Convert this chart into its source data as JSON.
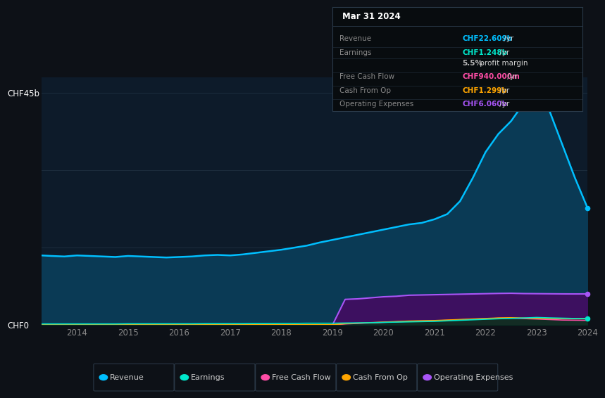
{
  "background_color": "#0d1117",
  "plot_bg_color": "#0d1b2a",
  "title_date": "Mar 31 2024",
  "years": [
    2013.3,
    2013.5,
    2013.75,
    2014.0,
    2014.25,
    2014.5,
    2014.75,
    2015.0,
    2015.25,
    2015.5,
    2015.75,
    2016.0,
    2016.25,
    2016.5,
    2016.75,
    2017.0,
    2017.25,
    2017.5,
    2017.75,
    2018.0,
    2018.25,
    2018.5,
    2018.75,
    2019.0,
    2019.25,
    2019.5,
    2019.75,
    2020.0,
    2020.25,
    2020.5,
    2020.75,
    2021.0,
    2021.25,
    2021.5,
    2021.75,
    2022.0,
    2022.25,
    2022.5,
    2022.75,
    2023.0,
    2023.25,
    2023.5,
    2023.75,
    2024.0
  ],
  "revenue": [
    13.5,
    13.4,
    13.3,
    13.5,
    13.4,
    13.3,
    13.2,
    13.4,
    13.3,
    13.2,
    13.1,
    13.2,
    13.3,
    13.5,
    13.6,
    13.5,
    13.7,
    14.0,
    14.3,
    14.6,
    15.0,
    15.4,
    16.0,
    16.5,
    17.0,
    17.5,
    18.0,
    18.5,
    19.0,
    19.5,
    19.8,
    20.5,
    21.5,
    24.0,
    28.5,
    33.5,
    37.0,
    39.5,
    43.0,
    44.5,
    41.5,
    35.0,
    28.5,
    22.6
  ],
  "earnings": [
    0.25,
    0.25,
    0.25,
    0.25,
    0.25,
    0.25,
    0.25,
    0.28,
    0.28,
    0.28,
    0.28,
    0.28,
    0.28,
    0.3,
    0.3,
    0.3,
    0.3,
    0.32,
    0.32,
    0.35,
    0.35,
    0.38,
    0.38,
    0.38,
    0.42,
    0.45,
    0.48,
    0.55,
    0.6,
    0.65,
    0.7,
    0.75,
    0.85,
    0.95,
    1.05,
    1.15,
    1.25,
    1.32,
    1.4,
    1.5,
    1.42,
    1.36,
    1.3,
    1.248
  ],
  "free_cash_flow": [
    0.05,
    0.05,
    0.05,
    0.05,
    0.05,
    0.05,
    0.05,
    0.05,
    0.05,
    0.05,
    0.05,
    0.05,
    0.05,
    0.05,
    0.05,
    0.05,
    0.05,
    0.05,
    0.05,
    0.05,
    0.05,
    0.05,
    0.05,
    0.05,
    0.25,
    0.35,
    0.45,
    0.55,
    0.65,
    0.75,
    0.8,
    0.85,
    0.95,
    1.05,
    1.15,
    1.25,
    1.35,
    1.38,
    1.28,
    1.2,
    1.1,
    1.0,
    0.97,
    0.94
  ],
  "cash_from_op": [
    0.1,
    0.1,
    0.1,
    0.1,
    0.1,
    0.1,
    0.1,
    0.1,
    0.1,
    0.1,
    0.1,
    0.1,
    0.1,
    0.1,
    0.1,
    0.1,
    0.1,
    0.1,
    0.1,
    0.1,
    0.1,
    0.1,
    0.1,
    0.1,
    0.3,
    0.4,
    0.5,
    0.6,
    0.7,
    0.8,
    0.85,
    0.9,
    1.0,
    1.1,
    1.2,
    1.3,
    1.4,
    1.45,
    1.38,
    1.32,
    1.28,
    1.28,
    1.29,
    1.299
  ],
  "operating_expenses": [
    0.0,
    0.0,
    0.0,
    0.0,
    0.0,
    0.0,
    0.0,
    0.0,
    0.0,
    0.0,
    0.0,
    0.0,
    0.0,
    0.0,
    0.0,
    0.0,
    0.0,
    0.0,
    0.0,
    0.0,
    0.0,
    0.0,
    0.0,
    0.0,
    5.0,
    5.1,
    5.3,
    5.5,
    5.6,
    5.8,
    5.85,
    5.9,
    5.95,
    6.0,
    6.05,
    6.1,
    6.15,
    6.18,
    6.12,
    6.1,
    6.08,
    6.06,
    6.05,
    6.06
  ],
  "ylim": [
    0,
    48
  ],
  "ytick_labels": [
    "CHF0",
    "CHF45b"
  ],
  "ytick_values": [
    0,
    45
  ],
  "xtick_years": [
    2014,
    2015,
    2016,
    2017,
    2018,
    2019,
    2020,
    2021,
    2022,
    2023,
    2024
  ],
  "hgrid_values": [
    15,
    30,
    45
  ],
  "colors": {
    "revenue": "#00bfff",
    "revenue_fill": "#0a3a55",
    "earnings": "#00e8cc",
    "earnings_fill": "#003322",
    "free_cash_flow": "#ff4da6",
    "fcf_fill": "#661033",
    "cash_from_op": "#ffa500",
    "cfo_fill": "#442200",
    "operating_expenses": "#a855f7",
    "opex_fill": "#3d1060"
  },
  "info_box_rows": [
    {
      "label": "Revenue",
      "value": "CHF22.609b",
      "suffix": " /yr",
      "value_color": "#00bfff"
    },
    {
      "label": "Earnings",
      "value": "CHF1.248b",
      "suffix": " /yr",
      "value_color": "#00e8cc"
    },
    {
      "label": "",
      "value": "5.5%",
      "suffix": " profit margin",
      "value_color": "#bbbbbb",
      "bold": true
    },
    {
      "label": "Free Cash Flow",
      "value": "CHF940.000m",
      "suffix": " /yr",
      "value_color": "#ff4da6"
    },
    {
      "label": "Cash From Op",
      "value": "CHF1.299b",
      "suffix": " /yr",
      "value_color": "#ffa500"
    },
    {
      "label": "Operating Expenses",
      "value": "CHF6.060b",
      "suffix": " /yr",
      "value_color": "#a855f7"
    }
  ],
  "legend": [
    {
      "label": "Revenue",
      "color": "#00bfff"
    },
    {
      "label": "Earnings",
      "color": "#00e8cc"
    },
    {
      "label": "Free Cash Flow",
      "color": "#ff4da6"
    },
    {
      "label": "Cash From Op",
      "color": "#ffa500"
    },
    {
      "label": "Operating Expenses",
      "color": "#a855f7"
    }
  ]
}
